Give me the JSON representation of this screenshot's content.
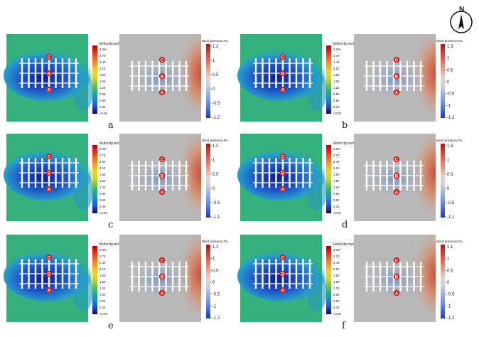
{
  "compass": {
    "letter": "N"
  },
  "velocity_scale": {
    "title": "Velocity,m/s",
    "ticks": [
      "3.00<",
      "2.70",
      "2.40",
      "2.10",
      "1.80",
      "1.50",
      "1.20",
      "0.90",
      "0.60",
      "0.30",
      "<0.00"
    ]
  },
  "colors": {
    "velocity": [
      "#b40000",
      "#e61e1e",
      "#f0641e",
      "#f5a01e",
      "#f5d21e",
      "#c8dc1e",
      "#78c83c",
      "#1eb478",
      "#1e8cc8",
      "#1e5adc",
      "#1e2896",
      "#0a0a50"
    ],
    "pressure_high": "#b42828",
    "pressure_mid": "#c8c8c8",
    "pressure_low": "#2846c8",
    "field_green": "#34b17c",
    "field_wake": "#1e78c8",
    "field_grey": "#b9b9b9",
    "marker": "#d8231f"
  },
  "markers": [
    "C",
    "B",
    "A"
  ],
  "panels": [
    {
      "letter": "a",
      "pressure": {
        "title": "Wind pressure,Pa",
        "ticks": [
          "1.2",
          "1",
          "0.5",
          "0",
          "-0.5",
          "-1.2"
        ]
      }
    },
    {
      "letter": "b",
      "pressure": {
        "title": "Wind pressure,Pa",
        "ticks": [
          "1.3",
          "1",
          "0.5",
          "0",
          "-0.5",
          "-1",
          "-1.2"
        ]
      }
    },
    {
      "letter": "c",
      "pressure": {
        "title": "Wind pressure,Pa",
        "ticks": [
          "1.2",
          "1",
          "0.5",
          "0",
          "-0.5",
          "-1.1"
        ]
      }
    },
    {
      "letter": "d",
      "pressure": {
        "title": "Wind pressure,Pa",
        "ticks": [
          "1.3",
          "1",
          "0.5",
          "0",
          "-0.5",
          "-1.1"
        ]
      }
    },
    {
      "letter": "e",
      "pressure": {
        "title": "Wind pressure,Pa",
        "ticks": [
          "1.1",
          "1",
          "0.5",
          "0",
          "-0.5",
          "-1",
          "-1.2"
        ]
      }
    },
    {
      "letter": "f",
      "pressure": {
        "title": "Wind pressure,Pa",
        "ticks": [
          "1.1",
          "1",
          "0.5",
          "0",
          "-0.5",
          "-1",
          "-1.2"
        ]
      }
    }
  ]
}
